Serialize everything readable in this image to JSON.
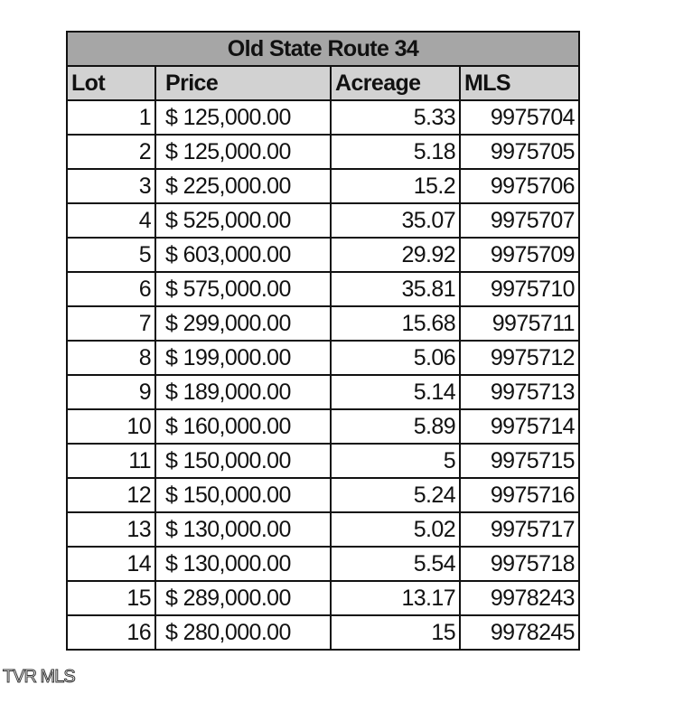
{
  "title": "Old State Route 34",
  "headers": [
    "Lot",
    "Price",
    "Acreage",
    "MLS"
  ],
  "rows": [
    [
      "1",
      "$ 125,000.00",
      "5.33",
      "9975704"
    ],
    [
      "2",
      "$ 125,000.00",
      "5.18",
      "9975705"
    ],
    [
      "3",
      "$ 225,000.00",
      "15.2",
      "9975706"
    ],
    [
      "4",
      "$ 525,000.00",
      "35.07",
      "9975707"
    ],
    [
      "5",
      "$ 603,000.00",
      "29.92",
      "9975709"
    ],
    [
      "6",
      "$ 575,000.00",
      "35.81",
      "9975710"
    ],
    [
      "7",
      "$ 299,000.00",
      "15.68",
      "9975711"
    ],
    [
      "8",
      "$ 199,000.00",
      "5.06",
      "9975712"
    ],
    [
      "9",
      "$ 189,000.00",
      "5.14",
      "9975713"
    ],
    [
      "10",
      "$ 160,000.00",
      "5.89",
      "9975714"
    ],
    [
      "11",
      "$ 150,000.00",
      "5",
      "9975715"
    ],
    [
      "12",
      "$ 150,000.00",
      "5.24",
      "9975716"
    ],
    [
      "13",
      "$ 130,000.00",
      "5.02",
      "9975717"
    ],
    [
      "14",
      "$ 130,000.00",
      "5.54",
      "9975718"
    ],
    [
      "15",
      "$ 289,000.00",
      "13.17",
      "9978243"
    ],
    [
      "16",
      "$ 280,000.00",
      "15",
      "9978245"
    ]
  ],
  "watermark": "TVR MLS",
  "colors": {
    "title_bg": "#a6a6a6",
    "header_bg": "#d2d2d2"
  }
}
